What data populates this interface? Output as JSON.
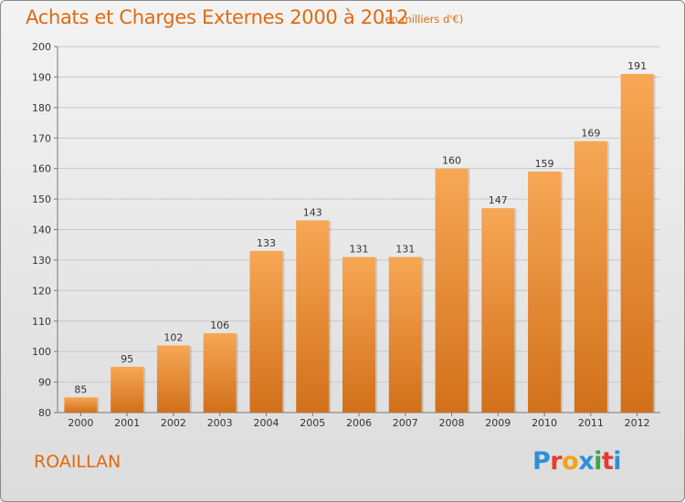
{
  "header": {
    "title": "Achats et Charges Externes 2000 à 2012",
    "subtitle": "(en milliers d'€)"
  },
  "footer": {
    "commune": "ROAILLAN",
    "logo_text": "Proxiti",
    "logo_colors": [
      "#2f8fd8",
      "#e83a2f",
      "#f4a21a",
      "#2f8fd8",
      "#3aa845",
      "#e83a2f",
      "#2f8fd8"
    ]
  },
  "chart_data": {
    "type": "bar",
    "title": "Achats et Charges Externes 2000 à 2012",
    "subtitle": "(en milliers d'€)",
    "xlabel": "",
    "ylabel": "",
    "categories": [
      "2000",
      "2001",
      "2002",
      "2003",
      "2004",
      "2005",
      "2006",
      "2007",
      "2008",
      "2009",
      "2010",
      "2011",
      "2012"
    ],
    "values": [
      85,
      95,
      102,
      106,
      133,
      143,
      131,
      131,
      160,
      147,
      159,
      169,
      191
    ],
    "ylim": [
      80,
      200
    ],
    "yticks": [
      80,
      90,
      100,
      110,
      120,
      130,
      140,
      150,
      160,
      170,
      180,
      190,
      200
    ],
    "grid": true,
    "bar_color_top": "#f7a755",
    "bar_color_bottom": "#d2701a",
    "grid_color": "#c8c8c8"
  }
}
